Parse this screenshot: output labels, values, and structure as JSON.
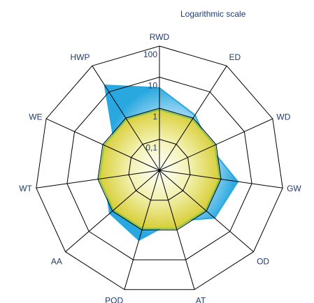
{
  "chart_data": {
    "type": "radar",
    "annotation": "Logarithmic scale",
    "scale": "log10",
    "range": [
      0.1,
      100
    ],
    "ticks": [
      "0,1",
      "1",
      "10",
      "100"
    ],
    "tick_values": [
      0.1,
      1,
      10,
      100
    ],
    "categories": [
      "RWD",
      "ED",
      "WD",
      "GW",
      "OD",
      "AT",
      "POD",
      "AA",
      "WT",
      "WE",
      "HWP"
    ],
    "series": [
      {
        "color": "#29a8e0",
        "values": [
          4.5,
          1.3,
          0.6,
          3.5,
          2.2,
          0.5,
          2.2,
          1.3,
          0.6,
          0.35,
          18
        ]
      },
      {
        "color": "#8dc63f",
        "values": [
          0.9,
          0.9,
          0.9,
          0.9,
          0.9,
          0.9,
          0.9,
          0.9,
          0.9,
          0.9,
          0.9
        ]
      }
    ],
    "grid": true,
    "colors": {
      "grid": "#000000",
      "text": "#1f3b73"
    }
  }
}
